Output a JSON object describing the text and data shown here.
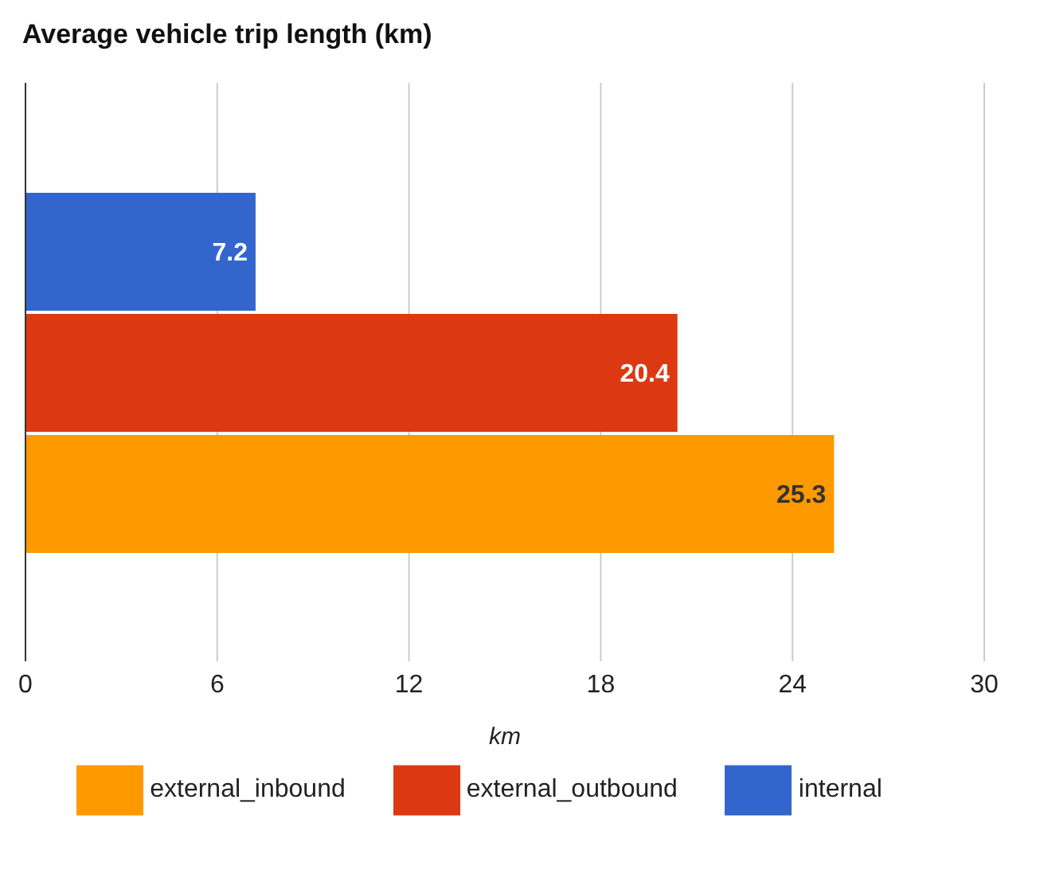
{
  "chart_data": {
    "type": "bar",
    "orientation": "horizontal",
    "title": "Average vehicle trip length (km)",
    "xlabel": "km",
    "categories": [
      null
    ],
    "series": [
      {
        "name": "internal",
        "color": "#3366cc",
        "values": [
          7.2
        ]
      },
      {
        "name": "external_outbound",
        "color": "#dc3912",
        "values": [
          20.4
        ]
      },
      {
        "name": "external_inbound",
        "color": "#ff9900",
        "values": [
          25.3
        ]
      }
    ],
    "xlim": [
      0,
      30
    ],
    "xticks": [
      0,
      6,
      12,
      18,
      24,
      30
    ],
    "grid": "x",
    "legend": "bottom",
    "data_labels": true
  }
}
